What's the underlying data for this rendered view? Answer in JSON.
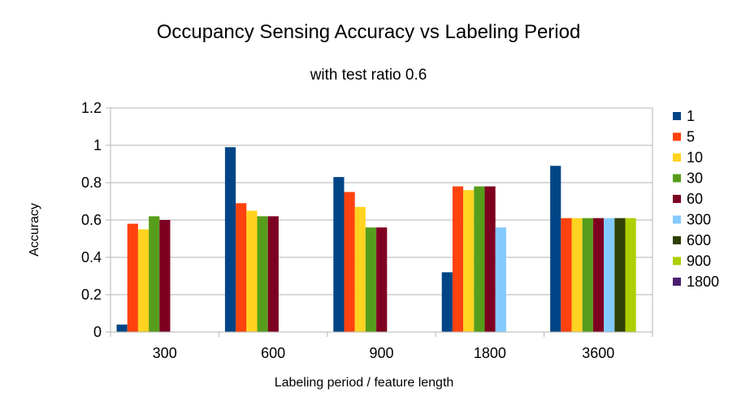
{
  "chart_data": {
    "type": "bar",
    "title": "Occupancy Sensing Accuracy vs Labeling Period",
    "subtitle": "with test ratio 0.6",
    "xlabel": "Labeling period / feature length",
    "ylabel": "Accuracy",
    "ylim": [
      0,
      1.2
    ],
    "y_ticks": [
      "0",
      "0.2",
      "0.4",
      "0.6",
      "0.8",
      "1",
      "1.2"
    ],
    "grid": true,
    "legend_position": "right",
    "categories": [
      "300",
      "600",
      "900",
      "1800",
      "3600"
    ],
    "series": [
      {
        "name": "1",
        "color": "#004586",
        "values": [
          0.04,
          0.99,
          0.83,
          0.32,
          0.89
        ]
      },
      {
        "name": "5",
        "color": "#ff420e",
        "values": [
          0.58,
          0.69,
          0.75,
          0.78,
          0.61
        ]
      },
      {
        "name": "10",
        "color": "#ffd320",
        "values": [
          0.55,
          0.65,
          0.67,
          0.76,
          0.61
        ]
      },
      {
        "name": "30",
        "color": "#579d1c",
        "values": [
          0.62,
          0.62,
          0.56,
          0.78,
          0.61
        ]
      },
      {
        "name": "60",
        "color": "#7e0021",
        "values": [
          0.6,
          0.62,
          0.56,
          0.78,
          0.61
        ]
      },
      {
        "name": "300",
        "color": "#83caff",
        "values": [
          null,
          null,
          null,
          0.56,
          0.61
        ]
      },
      {
        "name": "600",
        "color": "#314004",
        "values": [
          null,
          null,
          null,
          null,
          0.61
        ]
      },
      {
        "name": "900",
        "color": "#aecf00",
        "values": [
          null,
          null,
          null,
          null,
          0.61
        ]
      },
      {
        "name": "1800",
        "color": "#4b1f6f",
        "values": [
          null,
          null,
          null,
          null,
          null
        ]
      }
    ]
  }
}
